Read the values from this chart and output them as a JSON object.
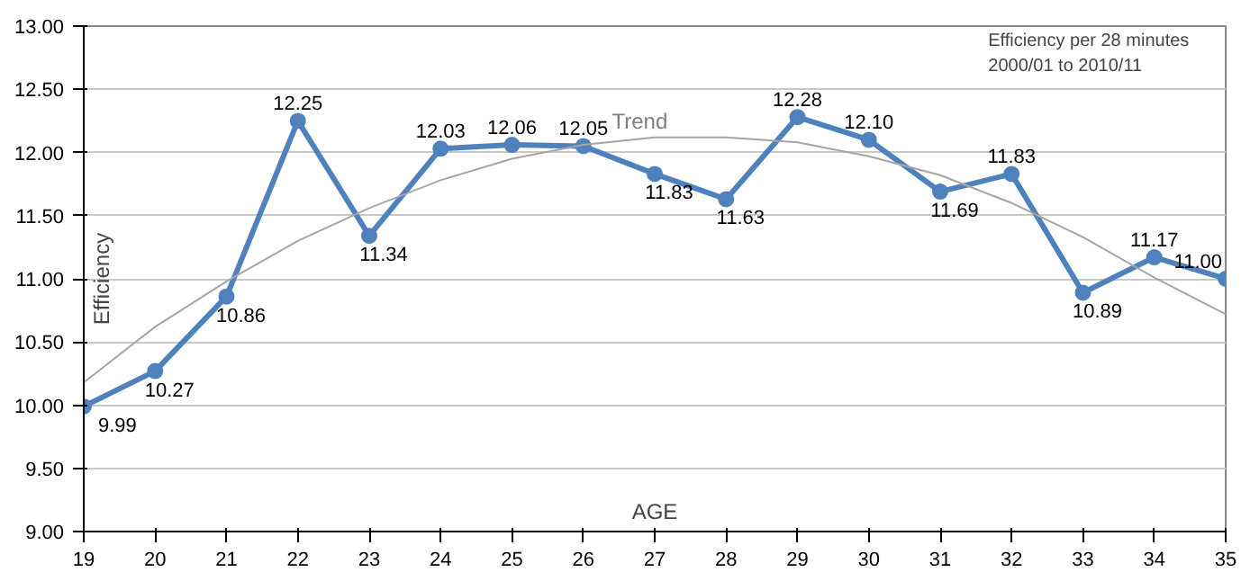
{
  "chart_data": {
    "type": "line",
    "title": "Efficiency per 28 minutes",
    "subtitle": "2000/01 to 2010/11",
    "xlabel": "AGE",
    "ylabel": "Efficiency",
    "x": [
      19,
      20,
      21,
      22,
      23,
      24,
      25,
      26,
      27,
      28,
      29,
      30,
      31,
      32,
      33,
      34,
      35
    ],
    "series": [
      {
        "color": "#4f81bd",
        "values": [
          9.99,
          10.27,
          10.86,
          12.25,
          11.34,
          12.03,
          12.06,
          12.05,
          11.83,
          11.63,
          12.28,
          12.1,
          11.69,
          11.83,
          10.89,
          11.17,
          11.0
        ],
        "marker": "circle",
        "value_labels": [
          "9.99",
          "10.27",
          "10.86",
          "12.25",
          "11.34",
          "12.03",
          "12.06",
          "12.05",
          "11.83",
          "11.63",
          "12.28",
          "12.10",
          "11.69",
          "11.83",
          "10.89",
          "11.17",
          "11.00"
        ]
      },
      {
        "name": "Trend",
        "color": "#a6a6a6",
        "x": [
          19,
          20,
          21,
          22,
          23,
          24,
          25,
          26,
          27,
          28,
          29,
          30,
          31,
          32,
          33,
          34,
          35
        ],
        "values": [
          10.18,
          10.62,
          10.98,
          11.3,
          11.56,
          11.78,
          11.95,
          12.06,
          12.12,
          12.12,
          12.08,
          11.97,
          11.82,
          11.6,
          11.33,
          11.01,
          10.72
        ],
        "marker": "none"
      }
    ],
    "xlim": [
      19,
      35
    ],
    "ylim": [
      9,
      13
    ],
    "xticks": [
      19,
      20,
      21,
      22,
      23,
      24,
      25,
      26,
      27,
      28,
      29,
      30,
      31,
      32,
      33,
      34,
      35
    ],
    "yticks": [
      {
        "value": 9,
        "label": "9.00"
      },
      {
        "value": 9.5,
        "label": "9.50"
      },
      {
        "value": 10,
        "label": "10.00"
      },
      {
        "value": 10.5,
        "label": "10.50"
      },
      {
        "value": 11,
        "label": "11.00"
      },
      {
        "value": 11.5,
        "label": "11.50"
      },
      {
        "value": 12,
        "label": "12.00"
      },
      {
        "value": 12.5,
        "label": "12.50"
      },
      {
        "value": 13,
        "label": "13.00"
      }
    ],
    "grid": "y",
    "legend": false
  }
}
